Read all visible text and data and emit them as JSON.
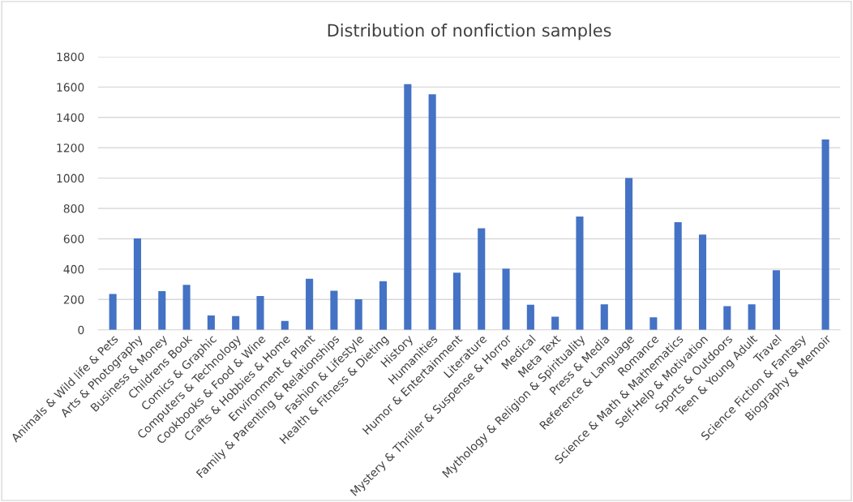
{
  "chart_data": {
    "type": "bar",
    "title": "Distribution of nonfiction samples",
    "categories": [
      "Animals & Wild life & Pets",
      "Arts & Photography",
      "Business & Money",
      "Childrens Book",
      "Comics & Graphic",
      "Computers & Technology",
      "Cookbooks & Food & Wine",
      "Crafts & Hobbies & Home",
      "Environment & Plant",
      "Family & Parenting & Relationships",
      "Fashion & Lifestyle",
      "Health & Fitness & Dieting",
      "History",
      "Humanities",
      "Humor & Entertainment",
      "Literature",
      "Mystery & Thriller & Suspense & Horror",
      "Medical",
      "Meta Text",
      "Mythology & Religion & Spirituality",
      "Press & Media",
      "Reference & Language",
      "Romance",
      "Science & Math & Mathematics",
      "Self-Help & Motivation",
      "Sports & Outdoors",
      "Teen & Young Adult",
      "Travel",
      "Science Fiction & Fantasy",
      "Biography & Memoir"
    ],
    "values": [
      236,
      603,
      255,
      296,
      94,
      90,
      223,
      59,
      337,
      257,
      202,
      321,
      1619,
      1553,
      376,
      669,
      403,
      165,
      87,
      747,
      168,
      1000,
      82,
      709,
      628,
      156,
      168,
      392,
      0,
      1254
    ],
    "color": "#4472c4",
    "ylim": [
      0,
      1800
    ],
    "yticks": [
      0,
      200,
      400,
      600,
      800,
      1000,
      1200,
      1400,
      1600,
      1800
    ],
    "grid": "y",
    "legend": false
  }
}
